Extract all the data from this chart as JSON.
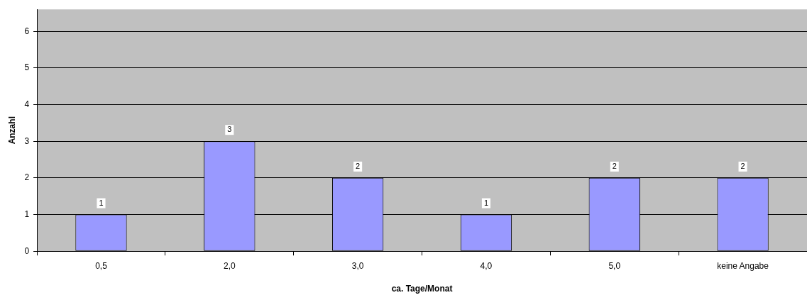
{
  "chart_data": {
    "type": "bar",
    "xlabel": "ca. Tage/Monat",
    "ylabel": "Anzahl",
    "categories": [
      "0,5",
      "2,0",
      "3,0",
      "4,0",
      "5,0",
      "keine Angabe"
    ],
    "values": [
      1,
      3,
      2,
      1,
      2,
      2
    ],
    "color": "#9999ff",
    "ylim": [
      0,
      6.6
    ],
    "yticks": [
      0,
      1,
      2,
      3,
      4,
      5,
      6
    ],
    "grid": "y",
    "legend": false,
    "data_labels": true
  }
}
